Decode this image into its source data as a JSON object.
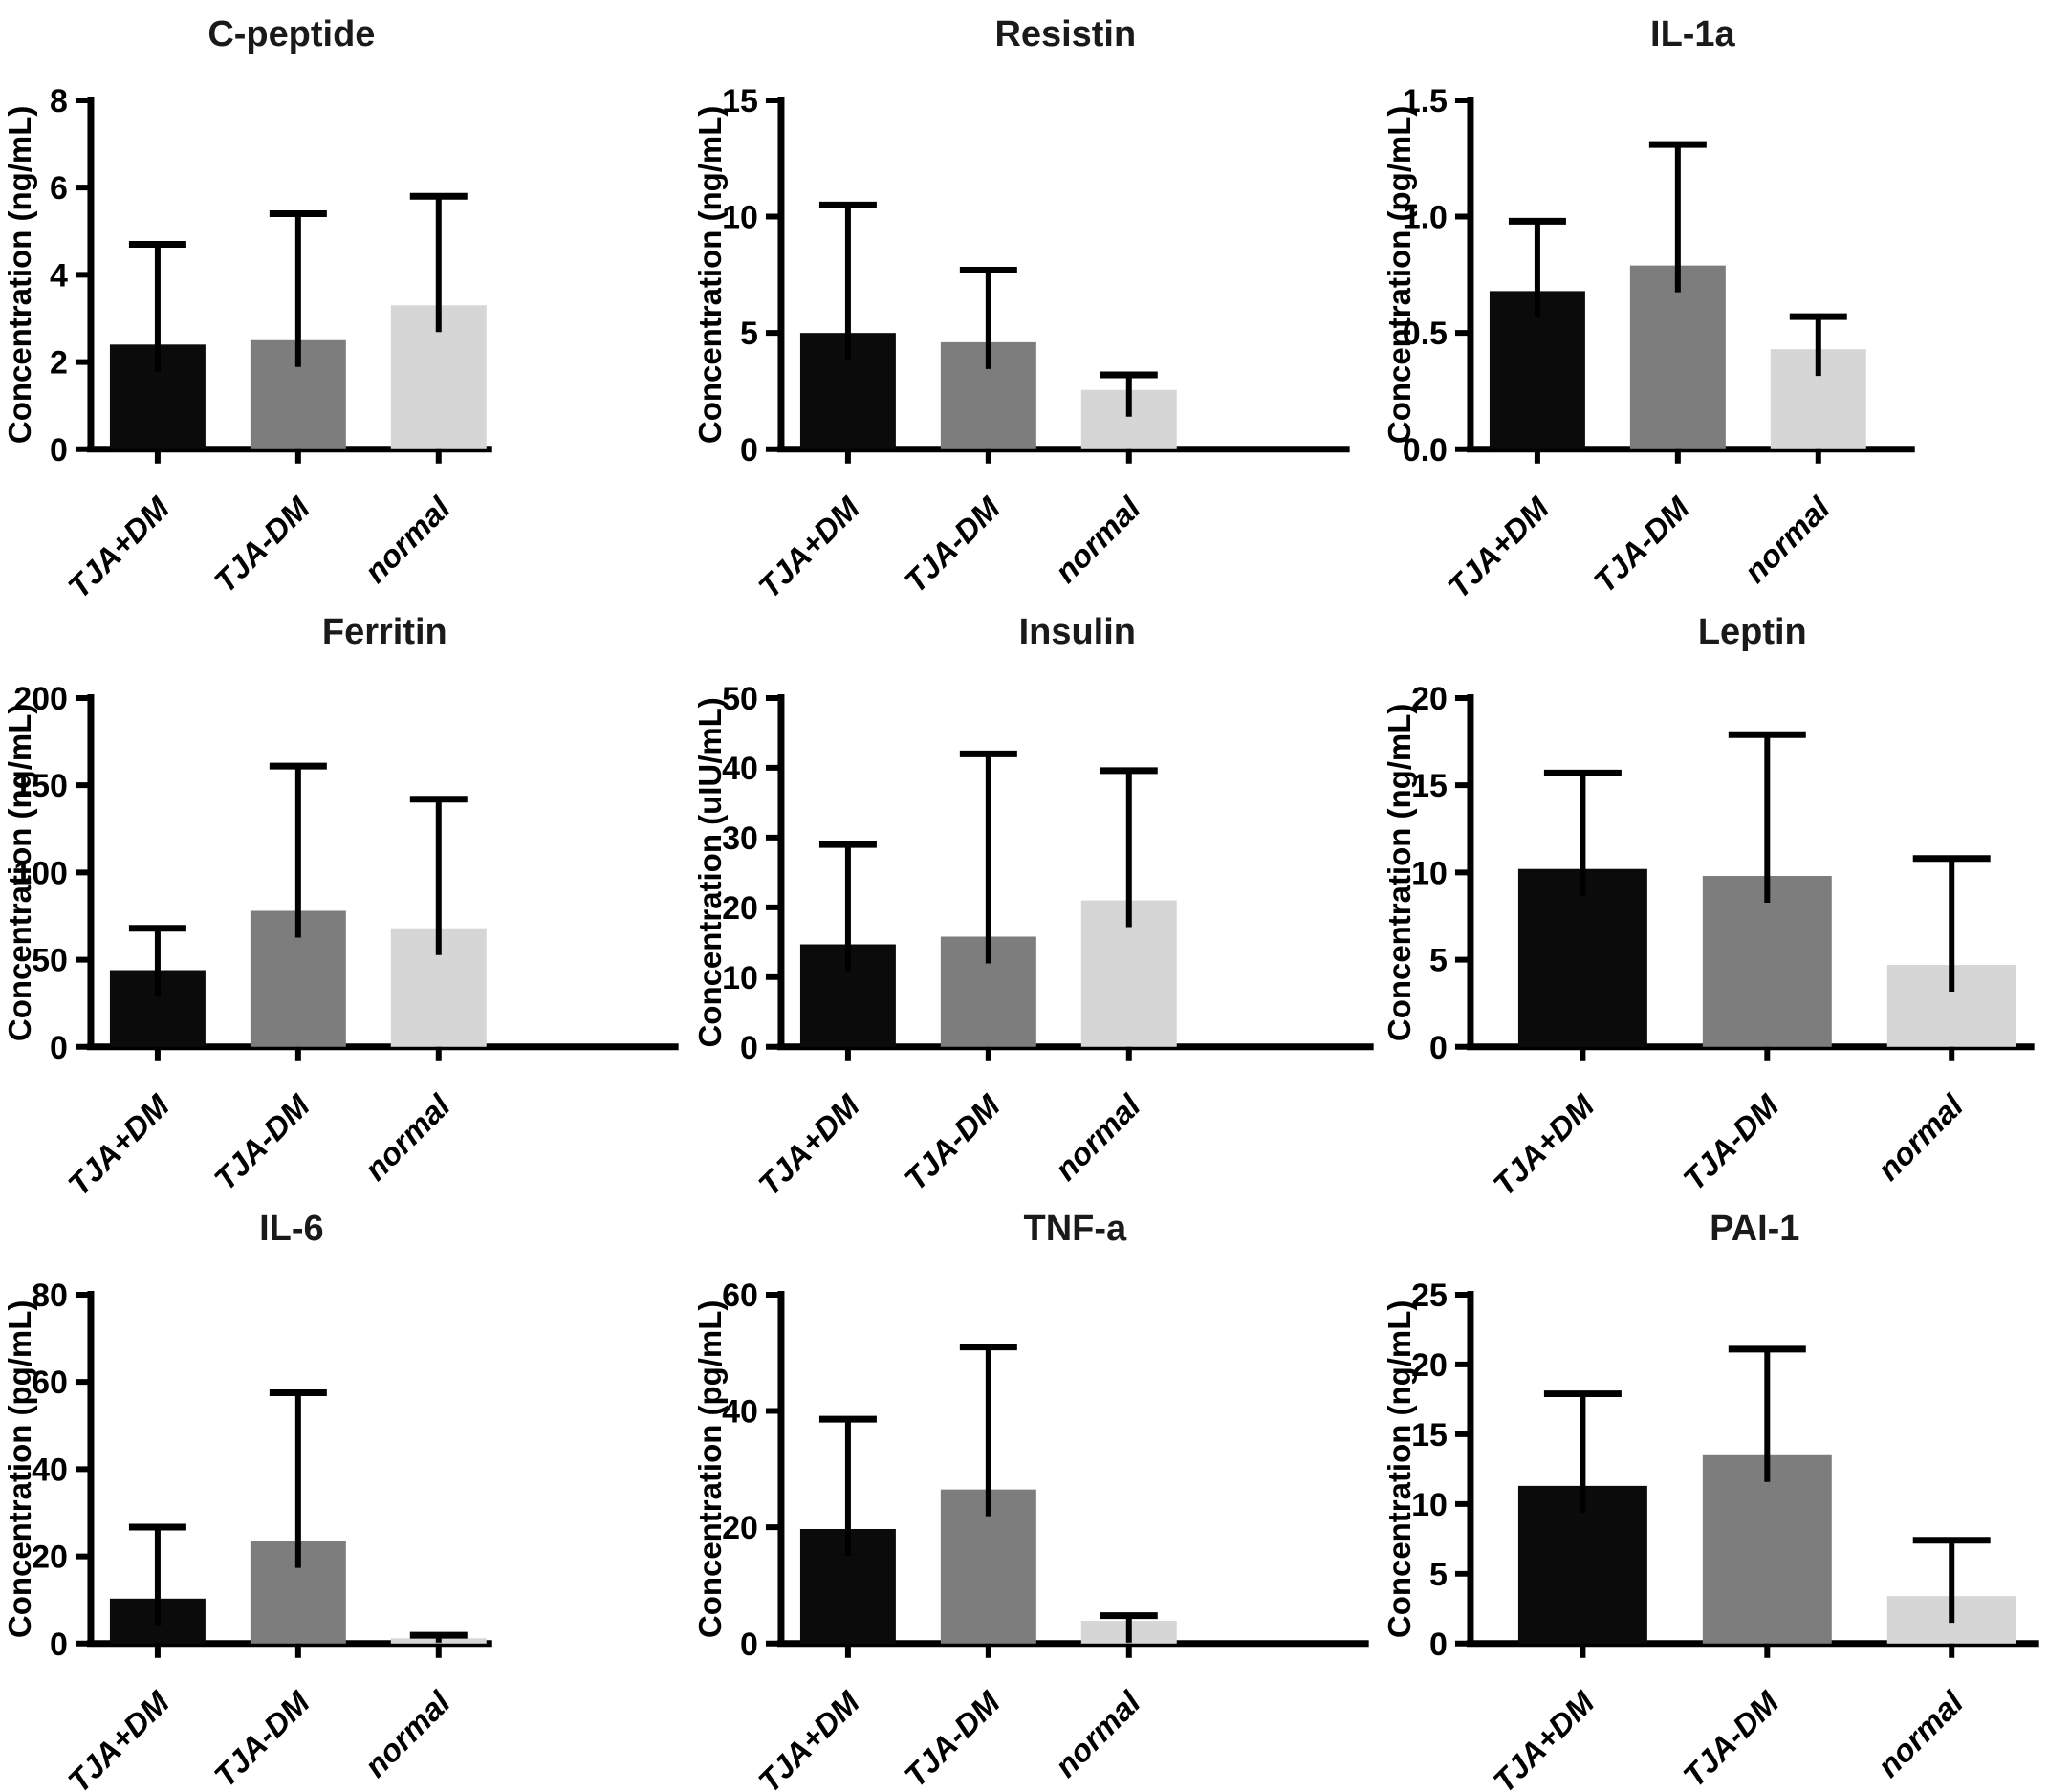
{
  "figure": {
    "description": "Panel of nine bar charts comparing serum biomarker concentrations among three groups",
    "groups": [
      "TJA+DM",
      "TJA-DM",
      "normal"
    ],
    "series_colors": [
      "#0b0b0b",
      "#7d7d7d",
      "#d6d6d6"
    ],
    "axis_color": "#000000",
    "background_color": "#ffffff"
  },
  "chart_data": [
    {
      "type": "bar",
      "title": "C-peptide",
      "ylabel": "Concentration (ng/mL)",
      "xlabel": "",
      "categories": [
        "TJA+DM",
        "TJA-DM",
        "normal"
      ],
      "values": [
        2.4,
        2.5,
        3.3
      ],
      "error_top": [
        4.7,
        5.4,
        5.8
      ],
      "ylim": [
        0,
        8
      ],
      "ytick_values": [
        0,
        2,
        4,
        6,
        8
      ],
      "ytick_labels": [
        "0",
        "2",
        "4",
        "6",
        "8"
      ],
      "grid": "off",
      "legend": "none",
      "layout": {
        "axis_end": 515,
        "bars": "compact"
      }
    },
    {
      "type": "bar",
      "title": "Resistin",
      "ylabel": "Concentration (ng/mL)",
      "xlabel": "",
      "categories": [
        "TJA+DM",
        "TJA-DM",
        "normal"
      ],
      "values": [
        5.0,
        4.6,
        2.55
      ],
      "error_top": [
        10.5,
        7.7,
        3.2
      ],
      "ylim": [
        0,
        15
      ],
      "ytick_values": [
        0,
        5,
        10,
        15
      ],
      "ytick_labels": [
        "0",
        "5",
        "10",
        "15"
      ],
      "grid": "off",
      "legend": "none",
      "layout": {
        "axis_end": 690,
        "bars": "compact"
      }
    },
    {
      "type": "bar",
      "title": "IL-1a",
      "ylabel": "Concentration (pg/mL)",
      "xlabel": "",
      "categories": [
        "TJA+DM",
        "TJA-DM",
        "normal"
      ],
      "values": [
        0.68,
        0.79,
        0.43
      ],
      "error_top": [
        0.98,
        1.31,
        0.57
      ],
      "ylim": [
        0,
        1.5
      ],
      "ytick_values": [
        0,
        0.5,
        1.0,
        1.5
      ],
      "ytick_labels": [
        "0.0",
        "0.5",
        "1.0",
        "1.5"
      ],
      "grid": "off",
      "legend": "none",
      "layout": {
        "axis_end": 560,
        "bars": "compact"
      }
    },
    {
      "type": "bar",
      "title": "Ferritin",
      "ylabel": "Concentration (ng/mL)",
      "xlabel": "",
      "categories": [
        "TJA+DM",
        "TJA-DM",
        "normal"
      ],
      "values": [
        44,
        78,
        68
      ],
      "error_top": [
        68,
        161,
        142
      ],
      "ylim": [
        0,
        200
      ],
      "ytick_values": [
        0,
        50,
        100,
        150,
        200
      ],
      "ytick_labels": [
        "0",
        "50",
        "100",
        "150",
        "200"
      ],
      "grid": "off",
      "legend": "none",
      "layout": {
        "axis_end": 710,
        "bars": "compact"
      }
    },
    {
      "type": "bar",
      "title": "Insulin",
      "ylabel": "Concentration (uIU/mL)",
      "xlabel": "",
      "categories": [
        "TJA+DM",
        "TJA-DM",
        "normal"
      ],
      "values": [
        14.7,
        15.8,
        21
      ],
      "error_top": [
        29,
        42,
        39.6
      ],
      "ylim": [
        0,
        50
      ],
      "ytick_values": [
        0,
        10,
        20,
        30,
        40,
        50
      ],
      "ytick_labels": [
        "0",
        "10",
        "20",
        "30",
        "40",
        "50"
      ],
      "grid": "off",
      "legend": "none",
      "layout": {
        "axis_end": 715,
        "bars": "compact"
      }
    },
    {
      "type": "bar",
      "title": "Leptin",
      "ylabel": "Concentration (ng/mL)",
      "xlabel": "",
      "categories": [
        "TJA+DM",
        "TJA-DM",
        "normal"
      ],
      "values": [
        10.2,
        9.8,
        4.7
      ],
      "error_top": [
        15.7,
        17.9,
        10.8
      ],
      "ylim": [
        0,
        20
      ],
      "ytick_values": [
        0,
        5,
        10,
        15,
        20
      ],
      "ytick_labels": [
        "0",
        "5",
        "10",
        "15",
        "20"
      ],
      "grid": "off",
      "legend": "none",
      "layout": {
        "axis_end": 685,
        "bars": "wide"
      }
    },
    {
      "type": "bar",
      "title": "IL-6",
      "ylabel": "Concentration (pg/mL)",
      "xlabel": "",
      "categories": [
        "TJA+DM",
        "TJA-DM",
        "normal"
      ],
      "values": [
        10.3,
        23.5,
        1.2
      ],
      "error_top": [
        26.7,
        57.5,
        1.9
      ],
      "ylim": [
        0,
        80
      ],
      "ytick_values": [
        0,
        20,
        40,
        60,
        80
      ],
      "ytick_labels": [
        "0",
        "20",
        "40",
        "60",
        "80"
      ],
      "grid": "off",
      "legend": "none",
      "layout": {
        "axis_end": 515,
        "bars": "compact"
      }
    },
    {
      "type": "bar",
      "title": "TNF-a",
      "ylabel": "Concentration (pg/mL)",
      "xlabel": "",
      "categories": [
        "TJA+DM",
        "TJA-DM",
        "normal"
      ],
      "values": [
        19.7,
        26.5,
        3.9
      ],
      "error_top": [
        38.6,
        51,
        4.8
      ],
      "ylim": [
        0,
        60
      ],
      "ytick_values": [
        0,
        20,
        40,
        60
      ],
      "ytick_labels": [
        "0",
        "20",
        "40",
        "60"
      ],
      "grid": "off",
      "legend": "none",
      "layout": {
        "axis_end": 710,
        "bars": "compact"
      }
    },
    {
      "type": "bar",
      "title": "PAI-1",
      "ylabel": "Concentration (ng/mL)",
      "xlabel": "",
      "categories": [
        "TJA+DM",
        "TJA-DM",
        "normal"
      ],
      "values": [
        11.3,
        13.5,
        3.4
      ],
      "error_top": [
        17.9,
        21.1,
        7.4
      ],
      "ylim": [
        0,
        25
      ],
      "ytick_values": [
        0,
        5,
        10,
        15,
        20,
        25
      ],
      "ytick_labels": [
        "0",
        "5",
        "10",
        "15",
        "20",
        "25"
      ],
      "grid": "off",
      "legend": "none",
      "layout": {
        "axis_end": 690,
        "bars": "wide"
      }
    }
  ]
}
